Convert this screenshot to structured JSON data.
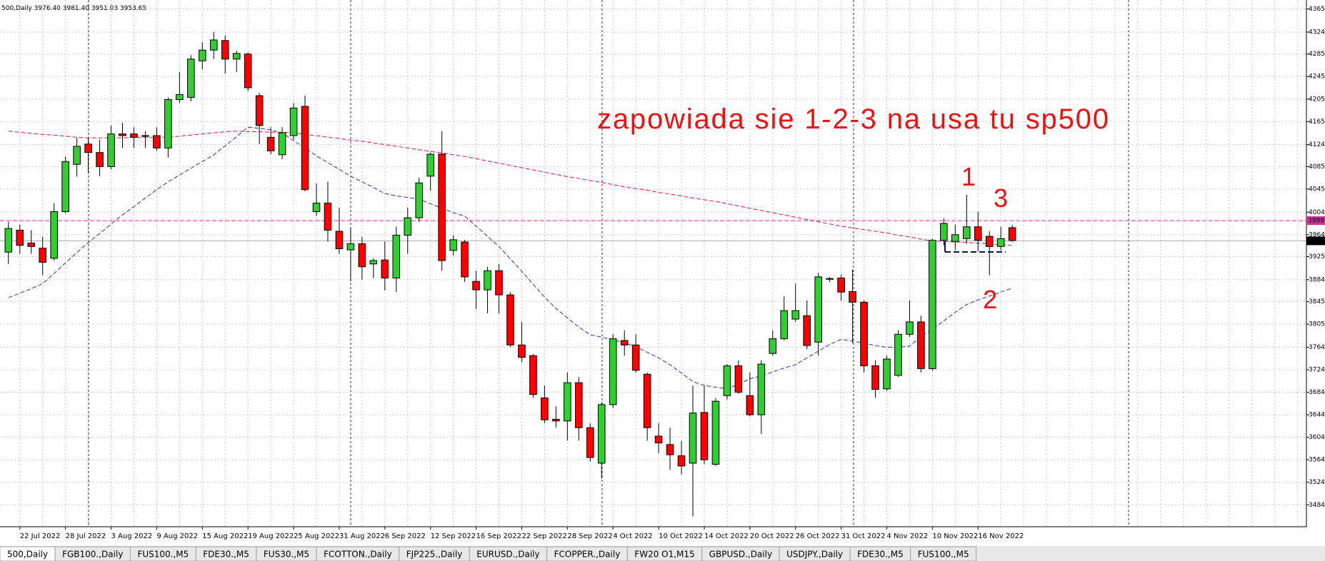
{
  "chart_data": {
    "type": "candlestick",
    "header": "500,Daily  3976.40 3981.40 3951.03 3953.65",
    "categories": [
      null,
      "22 Jul 2022",
      null,
      null,
      null,
      "28 Jul 2022",
      null,
      null,
      null,
      "3 Aug 2022",
      null,
      null,
      null,
      "9 Aug 2022",
      null,
      null,
      null,
      "15 Aug 2022",
      null,
      null,
      null,
      "19 Aug 2022",
      null,
      null,
      null,
      "25 Aug 2022",
      null,
      null,
      null,
      "31 Aug 2022",
      null,
      null,
      null,
      "6 Sep 2022",
      null,
      null,
      null,
      "12 Sep 2022",
      null,
      null,
      null,
      "16 Sep 2022",
      null,
      null,
      null,
      "22 Sep 2022",
      null,
      null,
      null,
      "28 Sep 2022",
      null,
      null,
      null,
      "4 Oct 2022",
      null,
      null,
      null,
      "10 Oct 2022",
      null,
      null,
      null,
      "14 Oct 2022",
      null,
      null,
      null,
      "20 Oct 2022",
      null,
      null,
      null,
      "26 Oct 2022",
      null,
      null,
      null,
      "31 Oct 2022",
      null,
      null,
      null,
      "4 Nov 2022",
      null,
      null,
      null,
      "10 Nov 2022",
      null,
      null,
      null,
      "16 Nov 2022",
      null,
      null,
      null
    ],
    "open": [
      3933,
      3972,
      3949,
      3940,
      3922,
      4005,
      4089,
      4125,
      4110,
      4085,
      4143,
      4143,
      4140,
      4140,
      4118,
      4204,
      4208,
      4273,
      4292,
      4309,
      4276,
      4285,
      4211,
      4137,
      4106,
      4140,
      4192,
      4005,
      4020,
      3970,
      3937,
      3948,
      3912,
      3919,
      3887,
      3963,
      3994,
      4068,
      4107,
      3936,
      3951,
      3881,
      3866,
      3900,
      3857,
      3768,
      3749,
      3674,
      3636,
      3633,
      3701,
      3621,
      3558,
      3662,
      3776,
      3768,
      3716,
      3606,
      3591,
      3571,
      3558,
      3648,
      3556,
      3678,
      3731,
      3678,
      3644,
      3753,
      3779,
      3814,
      3820,
      3773,
      3886,
      3887,
      3863,
      3844,
      3731,
      3690,
      3714,
      3787,
      3809,
      3726,
      3954,
      3952,
      3957,
      3978,
      3961,
      3943,
      3976.4
    ],
    "high": [
      3987,
      3982,
      3972,
      3960,
      4020,
      4103,
      4136,
      4136,
      4133,
      4158,
      4163,
      4155,
      4148,
      4155,
      4208,
      4253,
      4283,
      4306,
      4324,
      4318,
      4291,
      4288,
      4216,
      4155,
      4155,
      4198,
      4211,
      4055,
      4058,
      4012,
      3975,
      3960,
      3922,
      3952,
      3978,
      4012,
      4065,
      4110,
      4148,
      3963,
      3955,
      3900,
      3907,
      3912,
      3862,
      3809,
      3752,
      3696,
      3659,
      3719,
      3711,
      3629,
      3666,
      3787,
      3794,
      3787,
      3719,
      3629,
      3621,
      3598,
      3696,
      3696,
      3674,
      3734,
      3741,
      3719,
      3741,
      3794,
      3854,
      3877,
      3847,
      3896,
      3889,
      3893,
      3902,
      3848,
      3741,
      3749,
      3794,
      3847,
      3820,
      3957,
      3993,
      3982,
      4035,
      4005,
      3970,
      3978,
      3981.4
    ],
    "low": [
      3912,
      3930,
      3930,
      3892,
      3918,
      4002,
      4067,
      4073,
      4068,
      4080,
      4118,
      4118,
      4118,
      4113,
      4101,
      4198,
      4201,
      4258,
      4276,
      4250,
      4253,
      4219,
      4125,
      4107,
      4098,
      4133,
      4041,
      3997,
      3952,
      3930,
      3881,
      3884,
      3887,
      3865,
      3862,
      3930,
      3987,
      4042,
      3900,
      3927,
      3880,
      3832,
      3824,
      3824,
      3764,
      3737,
      3674,
      3629,
      3621,
      3598,
      3598,
      3561,
      3531,
      3656,
      3749,
      3719,
      3598,
      3576,
      3546,
      3538,
      3463,
      3556,
      3553,
      3671,
      3681,
      3641,
      3610,
      3749,
      3776,
      3809,
      3761,
      3749,
      3880,
      3847,
      3771,
      3719,
      3674,
      3686,
      3711,
      3782,
      3719,
      3722,
      3945,
      3937,
      3948,
      3934,
      3892,
      3936,
      3951.03
    ],
    "close": [
      3975,
      3945,
      3943,
      3915,
      4005,
      4094,
      4121,
      4110,
      4085,
      4143,
      4140,
      4137,
      4140,
      4118,
      4204,
      4213,
      4276,
      4292,
      4310,
      4276,
      4286,
      4225,
      4158,
      4113,
      4145,
      4189,
      4044,
      4020,
      3972,
      3939,
      3948,
      3907,
      3918,
      3887,
      3963,
      3994,
      4056,
      4107,
      3918,
      3955,
      3889,
      3866,
      3900,
      3857,
      3768,
      3746,
      3680,
      3635,
      3633,
      3701,
      3621,
      3568,
      3662,
      3779,
      3768,
      3723,
      3621,
      3594,
      3573,
      3553,
      3647,
      3564,
      3668,
      3731,
      3684,
      3644,
      3734,
      3779,
      3829,
      3829,
      3767,
      3889,
      3886,
      3862,
      3844,
      3731,
      3689,
      3743,
      3787,
      3809,
      3726,
      3954,
      3984,
      3964,
      3978,
      3954,
      3943,
      3957,
      3953.65
    ],
    "up_color": "#32cd32",
    "down_color": "#ff0000",
    "lines": [
      {
        "color": "#dc143c",
        "values": [
          4148,
          4146,
          4144,
          4142,
          4141,
          4139,
          4137,
          4136,
          4136,
          4136,
          4136,
          4137,
          4137,
          4137,
          4137,
          4139,
          4141,
          4143,
          4145,
          4147,
          4148,
          4147,
          4147,
          4146,
          4146,
          4145,
          4142,
          4140,
          4137,
          4135,
          4132,
          4130,
          4127,
          4124,
          4121,
          4118,
          4115,
          4112,
          4109,
          4106,
          4103,
          4099,
          4095,
          4091,
          4087,
          4083,
          4079,
          4075,
          4071,
          4067,
          4064,
          4060,
          4057,
          4053,
          4049,
          4046,
          4043,
          4039,
          4036,
          4033,
          4029,
          4026,
          4023,
          4019,
          4015,
          4011,
          4007,
          4003,
          3999,
          3995,
          3991,
          3987,
          3983,
          3979,
          3976,
          3973,
          3970,
          3967,
          3963,
          3960,
          3956,
          3953,
          3952,
          3951,
          3950,
          3949,
          3948,
          3946,
          3945
        ]
      },
      {
        "color": "#2233cc",
        "values": [
          3852,
          3860,
          3868,
          3877,
          3895,
          3914,
          3932,
          3950,
          3966,
          3983,
          3999,
          4014,
          4029,
          4044,
          4058,
          4070,
          4082,
          4094,
          4106,
          4122,
          4138,
          4155,
          4153,
          4150,
          4145,
          4131,
          4118,
          4104,
          4092,
          4080,
          4068,
          4058,
          4048,
          4037,
          4033,
          4030,
          4027,
          4019,
          4011,
          4003,
          3997,
          3979,
          3961,
          3943,
          3921,
          3899,
          3876,
          3853,
          3833,
          3816,
          3800,
          3786,
          3782,
          3777,
          3772,
          3765,
          3755,
          3745,
          3733,
          3718,
          3703,
          3696,
          3693,
          3690,
          3698,
          3708,
          3713,
          3720,
          3727,
          3733,
          3745,
          3757,
          3769,
          3778,
          3775,
          3771,
          3767,
          3764,
          3764,
          3766,
          3783,
          3796,
          3811,
          3826,
          3840,
          3848,
          3855,
          3862,
          3869
        ]
      }
    ],
    "price_lines": [
      {
        "value": 3989,
        "color": "#cc3399"
      },
      {
        "value": 3953,
        "color": "#000000"
      }
    ],
    "ylim": [
      3445,
      4381
    ],
    "yticks": [
      3484,
      3524,
      3564,
      3604,
      3644,
      3684,
      3724,
      3764,
      3805,
      3845,
      3884,
      3925,
      3964,
      4004,
      4045,
      4085,
      4124,
      4165,
      4205,
      4245,
      4285,
      4324,
      4365
    ],
    "grid": true,
    "annotations": [
      "zapowiada sie 1-2-3 na usa  tu sp500",
      "1",
      "2",
      "3"
    ]
  },
  "tabs": [
    "500,Daily",
    "FGB100.,Daily",
    "FUS100.,M5",
    "FDE30.,M5",
    "FUS30.,M5",
    "FCOTTON.,Daily",
    "FJP225.,Daily",
    "EURUSD.,Daily",
    "FCOPPER.,Daily",
    "FW20 O1,M15",
    "GBPUSD.,Daily",
    "USDJPY.,Daily",
    "FDE30.,M5",
    "FUS100.,M5"
  ]
}
